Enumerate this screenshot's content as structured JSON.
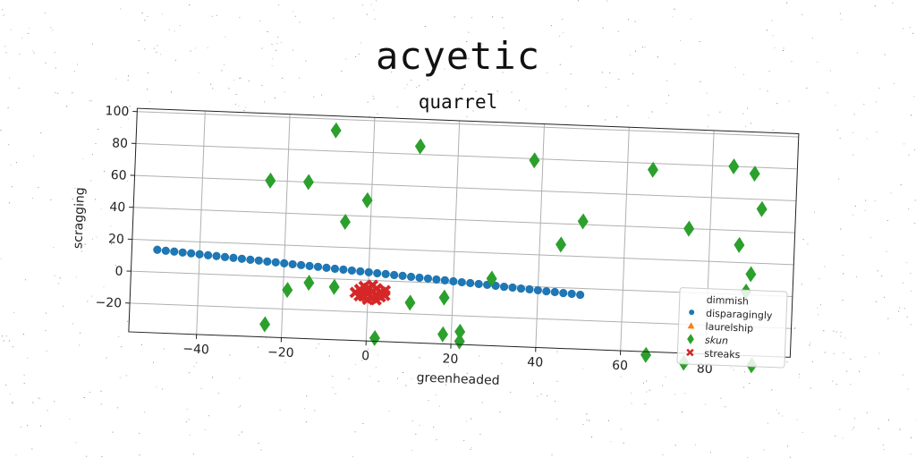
{
  "chart_data": {
    "type": "scatter",
    "title": "acyetic",
    "subtitle": "quarrel",
    "xlabel": "greenheaded",
    "ylabel": "scragging",
    "xlim": [
      -56,
      100
    ],
    "ylim": [
      -38,
      102
    ],
    "xticks": [
      -40,
      -20,
      0,
      20,
      40,
      60,
      80
    ],
    "yticks": [
      -20,
      0,
      20,
      40,
      60,
      80,
      100
    ],
    "grid": true,
    "legend_position": "lower-right",
    "series": [
      {
        "name": "dimmish",
        "marker": "none",
        "color": "#1f77b4",
        "points": []
      },
      {
        "name": "disparagingly",
        "marker": "circle",
        "color": "#1f77b4",
        "points": [
          [
            -50,
            14
          ],
          [
            -48,
            13.6
          ],
          [
            -46,
            13.3
          ],
          [
            -44,
            12.9
          ],
          [
            -42,
            12.6
          ],
          [
            -40,
            12.2
          ],
          [
            -38,
            11.8
          ],
          [
            -36,
            11.5
          ],
          [
            -34,
            11.1
          ],
          [
            -32,
            10.8
          ],
          [
            -30,
            10.4
          ],
          [
            -28,
            10
          ],
          [
            -26,
            9.7
          ],
          [
            -24,
            9.3
          ],
          [
            -22,
            9
          ],
          [
            -20,
            8.6
          ],
          [
            -18,
            8.2
          ],
          [
            -16,
            7.9
          ],
          [
            -14,
            7.5
          ],
          [
            -12,
            7.2
          ],
          [
            -10,
            6.8
          ],
          [
            -8,
            6.4
          ],
          [
            -6,
            6.1
          ],
          [
            -4,
            5.7
          ],
          [
            -2,
            5.4
          ],
          [
            0,
            5
          ],
          [
            2,
            4.6
          ],
          [
            4,
            4.3
          ],
          [
            6,
            3.9
          ],
          [
            8,
            3.6
          ],
          [
            10,
            3.2
          ],
          [
            12,
            2.8
          ],
          [
            14,
            2.5
          ],
          [
            16,
            2.1
          ],
          [
            18,
            1.8
          ],
          [
            20,
            1.4
          ],
          [
            22,
            1
          ],
          [
            24,
            0.7
          ],
          [
            26,
            0.3
          ],
          [
            28,
            0
          ],
          [
            30,
            -0.4
          ],
          [
            32,
            -0.8
          ],
          [
            34,
            -1.1
          ],
          [
            36,
            -1.5
          ],
          [
            38,
            -1.8
          ],
          [
            40,
            -2.2
          ],
          [
            42,
            -2.6
          ],
          [
            44,
            -2.9
          ],
          [
            46,
            -3.3
          ],
          [
            48,
            -3.6
          ],
          [
            50,
            -4
          ]
        ]
      },
      {
        "name": "laurelship",
        "marker": "triangle",
        "color": "#ff7f0e",
        "points": []
      },
      {
        "name": "skun",
        "marker": "thin_diamond",
        "color": "#2ca02c",
        "points": [
          [
            -9,
            93
          ],
          [
            11,
            85
          ],
          [
            38,
            79
          ],
          [
            66,
            76
          ],
          [
            85,
            80
          ],
          [
            90,
            76
          ],
          [
            -24,
            60
          ],
          [
            -15,
            60
          ],
          [
            -1,
            50
          ],
          [
            -6,
            36
          ],
          [
            50,
            42
          ],
          [
            92,
            54
          ],
          [
            75,
            40
          ],
          [
            87,
            31
          ],
          [
            45,
            27
          ],
          [
            29,
            4
          ],
          [
            89,
            2
          ],
          [
            90,
            13
          ],
          [
            -19,
            -8
          ],
          [
            -14,
            -3
          ],
          [
            -8,
            -5
          ],
          [
            10,
            -13
          ],
          [
            18,
            -9
          ],
          [
            -24,
            -30
          ],
          [
            18,
            -32
          ],
          [
            22,
            -30
          ],
          [
            22,
            -36
          ],
          [
            2,
            -36
          ],
          [
            66,
            -40
          ],
          [
            91,
            -44
          ],
          [
            75,
            -44
          ]
        ]
      },
      {
        "name": "streaks",
        "marker": "X",
        "color": "#d62728",
        "points": [
          [
            -3,
            -8
          ],
          [
            -2,
            -6
          ],
          [
            -1,
            -10
          ],
          [
            0,
            -8
          ],
          [
            0,
            -5
          ],
          [
            1,
            -7
          ],
          [
            1,
            -11
          ],
          [
            2,
            -9
          ],
          [
            2,
            -5
          ],
          [
            3,
            -7
          ],
          [
            3,
            -10
          ],
          [
            4,
            -6
          ],
          [
            -1,
            -4
          ],
          [
            0,
            -12
          ],
          [
            -2,
            -10
          ],
          [
            1,
            -3
          ],
          [
            4,
            -9
          ],
          [
            2,
            -12
          ]
        ]
      }
    ]
  }
}
